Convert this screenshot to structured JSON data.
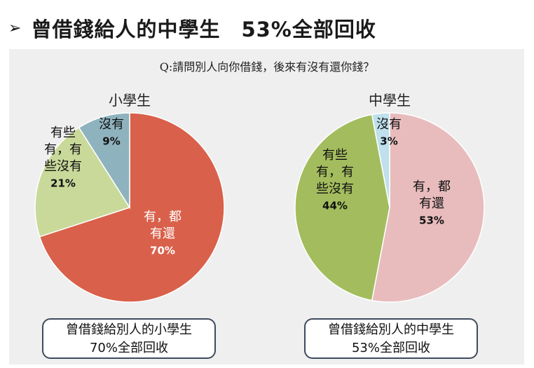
{
  "header": {
    "arrow": "➢",
    "title": "曾借錢給人的中學生　53%全部回收"
  },
  "question": "Q:請問別人向你借錢，後來有沒有還你錢？",
  "colors": {
    "red": "#d9604a",
    "light_green": "#c9d99a",
    "teal": "#8fb3be",
    "pink": "#e8bcbd",
    "olive": "#a3bd5e",
    "light_blue": "#bfe0ec",
    "panel": "#efefef"
  },
  "chart_data": [
    {
      "type": "pie",
      "title": "小學生",
      "slices": [
        {
          "label_lines": [
            "有，都",
            "有還"
          ],
          "value": 70,
          "value_label": "70%",
          "color": "#d9604a",
          "label_color": "#ffffff"
        },
        {
          "label_lines": [
            "有些",
            "有，有",
            "些沒有"
          ],
          "value": 21,
          "value_label": "21%",
          "color": "#c9d99a",
          "label_color": "#111111"
        },
        {
          "label_lines": [
            "沒有"
          ],
          "value": 9,
          "value_label": "9%",
          "color": "#8fb3be",
          "label_color": "#111111"
        }
      ]
    },
    {
      "type": "pie",
      "title": "中學生",
      "slices": [
        {
          "label_lines": [
            "有，都",
            "有還"
          ],
          "value": 53,
          "value_label": "53%",
          "color": "#e8bcbd",
          "label_color": "#111111"
        },
        {
          "label_lines": [
            "有些",
            "有，有",
            "些沒有"
          ],
          "value": 44,
          "value_label": "44%",
          "color": "#a3bd5e",
          "label_color": "#111111"
        },
        {
          "label_lines": [
            "沒有"
          ],
          "value": 3,
          "value_label": "3%",
          "color": "#bfe0ec",
          "label_color": "#111111"
        }
      ]
    }
  ],
  "summaries": {
    "left": {
      "line1": "曾借錢給別人的小學生",
      "line2": "70%全部回收"
    },
    "right": {
      "line1": "曾借錢給別人的中學生",
      "line2": "53%全部回收"
    }
  }
}
